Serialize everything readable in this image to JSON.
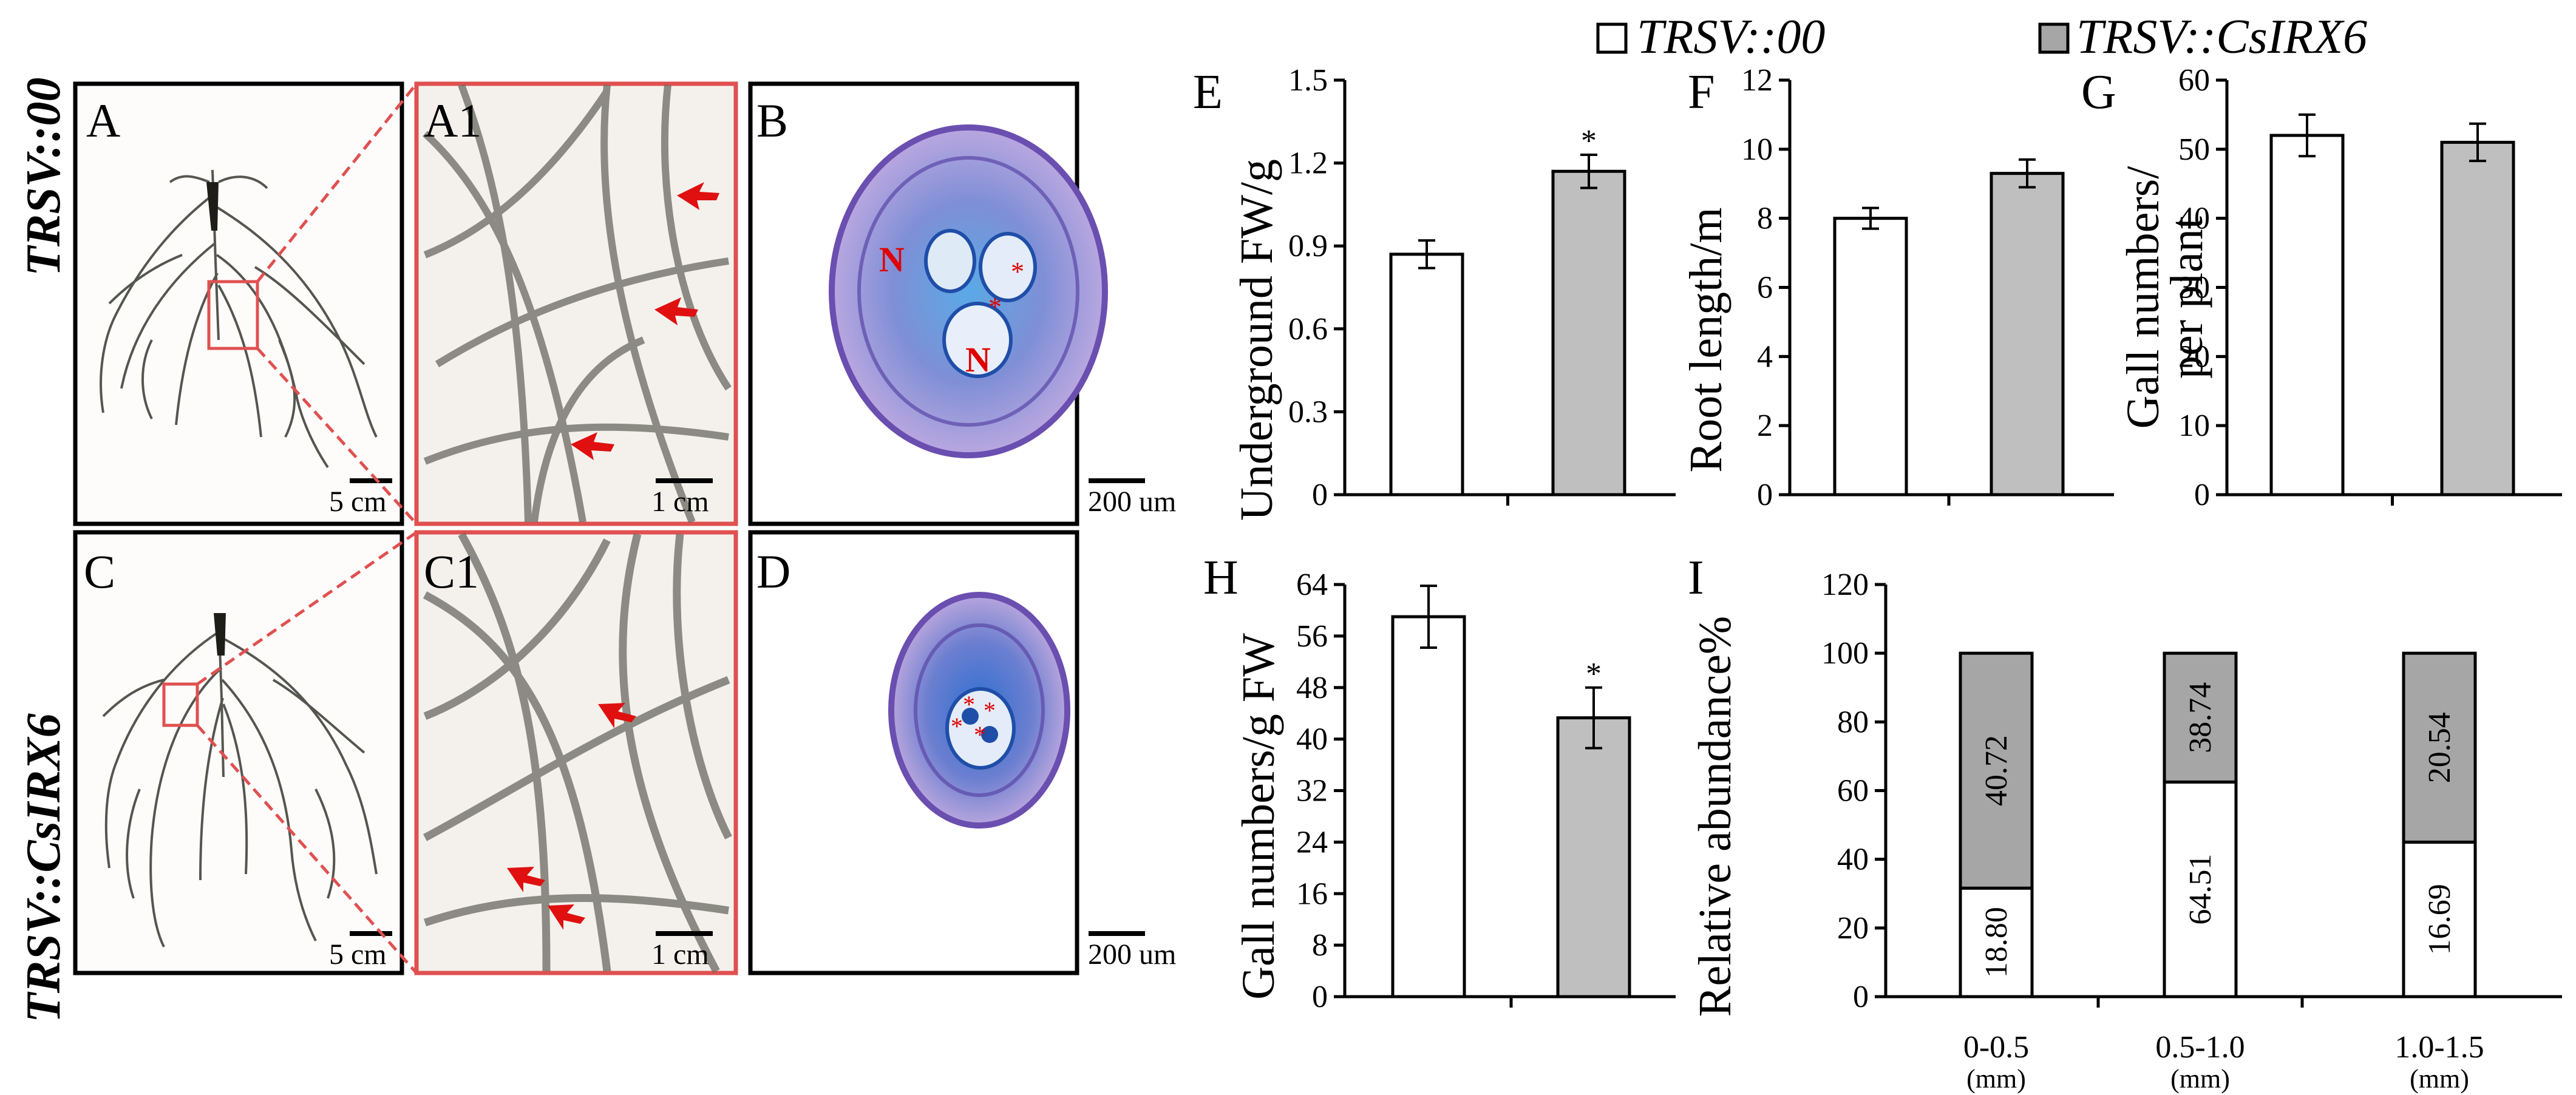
{
  "figure": {
    "row_labels": [
      "TRSV::00",
      "TRSV::CsIRX6"
    ],
    "legend": [
      {
        "label": "TRSV::00",
        "color": "#ffffff"
      },
      {
        "label": "TRSV::CsIRX6",
        "color": "#bfbfbf"
      }
    ],
    "colors": {
      "control": "#ffffff",
      "treatment": "#bfbfbf",
      "stack_top": "#a6a6a6",
      "zoom_frame": "#e05050",
      "star": "#e00000"
    },
    "photos": [
      {
        "id": "A",
        "label": "A",
        "scale": "5 cm"
      },
      {
        "id": "A1",
        "label": "A1",
        "scale": "1 cm"
      },
      {
        "id": "B",
        "label": "B",
        "scale": "200 um",
        "marks": [
          "N",
          "N"
        ]
      },
      {
        "id": "C",
        "label": "C",
        "scale": "5 cm"
      },
      {
        "id": "C1",
        "label": "C1",
        "scale": "1 cm"
      },
      {
        "id": "D",
        "label": "D",
        "scale": "200 um"
      }
    ]
  },
  "chart_data": [
    {
      "id": "E",
      "type": "bar",
      "panel_label": "E",
      "ylabel": "Underground FW/g",
      "categories": [
        "TRSV::00",
        "TRSV::CsIRX6"
      ],
      "values": [
        0.87,
        1.17
      ],
      "errors": [
        0.05,
        0.06
      ],
      "significance": [
        "",
        "*"
      ],
      "ylim": [
        0,
        1.5
      ],
      "yticks": [
        0,
        0.3,
        0.6,
        0.9,
        1.2,
        1.5
      ],
      "tick_labels": [
        "0",
        "0.3",
        "0.6",
        "0.9",
        "1.2",
        "1.5"
      ]
    },
    {
      "id": "F",
      "type": "bar",
      "panel_label": "F",
      "ylabel": "Root length/m",
      "categories": [
        "TRSV::00",
        "TRSV::CsIRX6"
      ],
      "values": [
        8.0,
        9.3
      ],
      "errors": [
        0.3,
        0.4
      ],
      "significance": [
        "",
        ""
      ],
      "ylim": [
        0,
        12
      ],
      "yticks": [
        0,
        2,
        4,
        6,
        8,
        10,
        12
      ],
      "tick_labels": [
        "0",
        "2",
        "4",
        "6",
        "8",
        "10",
        "12"
      ]
    },
    {
      "id": "G",
      "type": "bar",
      "panel_label": "G",
      "ylabel_lines": [
        "Gall numbers/",
        "per plant"
      ],
      "categories": [
        "TRSV::00",
        "TRSV::CsIRX6"
      ],
      "values": [
        52,
        51
      ],
      "errors": [
        3,
        2.7
      ],
      "significance": [
        "",
        ""
      ],
      "ylim": [
        0,
        60
      ],
      "yticks": [
        0,
        10,
        20,
        30,
        40,
        50,
        60
      ],
      "tick_labels": [
        "0",
        "10",
        "20",
        "30",
        "40",
        "50",
        "60"
      ]
    },
    {
      "id": "H",
      "type": "bar",
      "panel_label": "H",
      "ylabel": "Gall numbers/g FW",
      "categories": [
        "TRSV::00",
        "TRSV::CsIRX6"
      ],
      "values": [
        59,
        43.3
      ],
      "errors": [
        4.8,
        4.7
      ],
      "significance": [
        "",
        "*"
      ],
      "ylim": [
        0,
        64
      ],
      "yticks": [
        0,
        8,
        16,
        24,
        32,
        40,
        48,
        56,
        64
      ],
      "tick_labels": [
        "0",
        "8",
        "16",
        "24",
        "32",
        "40",
        "48",
        "56",
        "64"
      ]
    },
    {
      "id": "I",
      "type": "bar",
      "stacked": true,
      "panel_label": "I",
      "ylabel": "Relative abundance%",
      "categories": [
        "0-0.5",
        "0.5-1.0",
        "1.0-1.5"
      ],
      "unit_label": "(mm)",
      "series": [
        {
          "name": "TRSV::00",
          "values": [
            31.6,
            62.5,
            45.0
          ],
          "labels": [
            "18.80",
            "64.51",
            "16.69"
          ]
        },
        {
          "name": "TRSV::CsIRX6",
          "values": [
            68.4,
            37.5,
            55.0
          ],
          "labels": [
            "40.72",
            "38.74",
            "20.54"
          ]
        }
      ],
      "ylim": [
        0,
        120
      ],
      "yticks": [
        0,
        20,
        40,
        60,
        80,
        100,
        120
      ],
      "tick_labels": [
        "0",
        "20",
        "40",
        "60",
        "80",
        "100",
        "120"
      ]
    }
  ]
}
